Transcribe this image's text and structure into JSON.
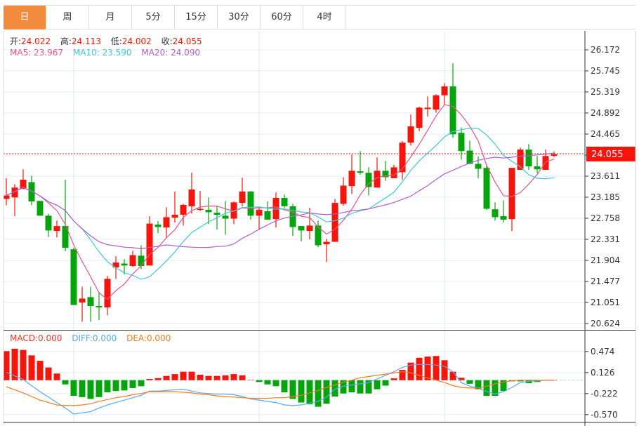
{
  "tabs": [
    {
      "label": "日",
      "active": true
    },
    {
      "label": "周"
    },
    {
      "label": "月"
    },
    {
      "label": "5分"
    },
    {
      "label": "15分"
    },
    {
      "label": "30分"
    },
    {
      "label": "60分"
    },
    {
      "label": "4时"
    }
  ],
  "ohlc_info": {
    "open_label": "开:",
    "open": "24.022",
    "high_label": "高:",
    "high": "24.113",
    "low_label": "低:",
    "low": "24.002",
    "close_label": "收:",
    "close": "24.055"
  },
  "ma_info": {
    "ma5": "MA5: 23.967",
    "ma10": "MA10: 23.590",
    "ma20": "MA20: 24.090"
  },
  "macd_info": {
    "macd": "MACD:0.000",
    "diff": "DIFF:0.000",
    "dea": "DEA:0.000"
  },
  "colors": {
    "up": "#f5150b",
    "down": "#04a50c",
    "ma5": "#eb5486",
    "ma10": "#3fc8dc",
    "ma20": "#b25cc9",
    "diff": "#5aa9ef",
    "dea": "#f47a1f",
    "tab_active": "#f38b3e"
  },
  "chart_data": [
    {
      "type": "candlestick",
      "title": "",
      "price_ticks": [
        "26.172",
        "25.745",
        "25.319",
        "24.892",
        "24.465",
        "24.038",
        "23.611",
        "23.185",
        "22.758",
        "22.331",
        "21.904",
        "21.477",
        "21.051",
        "20.624"
      ],
      "ylim": [
        20.624,
        26.172
      ],
      "last_price": "24.055",
      "candles": [
        [
          23.15,
          23.57,
          23.02,
          23.22
        ],
        [
          23.18,
          23.45,
          22.8,
          23.38
        ],
        [
          23.35,
          23.75,
          23.35,
          23.54
        ],
        [
          23.49,
          23.62,
          23.02,
          23.1
        ],
        [
          23.11,
          23.11,
          22.81,
          22.81
        ],
        [
          22.81,
          22.85,
          22.38,
          22.51
        ],
        [
          22.5,
          22.71,
          22.37,
          22.6
        ],
        [
          22.6,
          23.54,
          22.09,
          22.16
        ],
        [
          22.13,
          22.16,
          21.0,
          21.0
        ],
        [
          21.05,
          21.37,
          20.66,
          21.13
        ],
        [
          21.16,
          21.37,
          20.66,
          20.98
        ],
        [
          20.98,
          21.27,
          20.69,
          20.95
        ],
        [
          20.95,
          21.59,
          20.79,
          21.53
        ],
        [
          21.76,
          21.99,
          21.53,
          21.86
        ],
        [
          21.84,
          21.93,
          21.62,
          21.8
        ],
        [
          21.79,
          22.1,
          21.77,
          22.01
        ],
        [
          22.0,
          22.21,
          21.73,
          21.79
        ],
        [
          21.8,
          22.8,
          21.8,
          22.65
        ],
        [
          22.63,
          22.7,
          22.46,
          22.58
        ],
        [
          22.57,
          22.98,
          22.36,
          22.78
        ],
        [
          22.77,
          23.3,
          22.67,
          22.83
        ],
        [
          22.83,
          23.05,
          22.61,
          23.03
        ],
        [
          23.0,
          23.68,
          22.85,
          23.34
        ],
        [
          22.94,
          23.31,
          22.9,
          22.95
        ],
        [
          22.93,
          23.18,
          22.64,
          22.88
        ],
        [
          22.87,
          23.01,
          22.53,
          22.83
        ],
        [
          22.81,
          23.11,
          22.43,
          22.75
        ],
        [
          22.75,
          23.1,
          22.64,
          23.08
        ],
        [
          23.07,
          23.58,
          23.0,
          23.3
        ],
        [
          23.3,
          23.31,
          22.73,
          22.81
        ],
        [
          22.81,
          22.97,
          22.53,
          22.93
        ],
        [
          22.9,
          23.1,
          22.73,
          22.73
        ],
        [
          22.74,
          23.28,
          22.57,
          23.17
        ],
        [
          23.17,
          23.24,
          22.97,
          23.0
        ],
        [
          23.0,
          23.05,
          22.4,
          22.58
        ],
        [
          22.6,
          22.6,
          22.29,
          22.51
        ],
        [
          22.5,
          22.97,
          22.33,
          22.61
        ],
        [
          22.61,
          22.71,
          22.17,
          22.21
        ],
        [
          22.23,
          22.34,
          21.87,
          22.28
        ],
        [
          22.28,
          23.15,
          22.28,
          23.07
        ],
        [
          23.05,
          23.59,
          23.01,
          23.42
        ],
        [
          23.41,
          24.05,
          23.25,
          23.72
        ],
        [
          23.71,
          24.12,
          23.64,
          23.68
        ],
        [
          23.68,
          23.79,
          23.22,
          23.39
        ],
        [
          23.38,
          23.99,
          23.38,
          23.72
        ],
        [
          23.72,
          23.92,
          23.52,
          23.59
        ],
        [
          23.57,
          23.84,
          23.57,
          23.79
        ],
        [
          23.69,
          24.32,
          23.54,
          24.29
        ],
        [
          24.29,
          24.86,
          24.23,
          24.62
        ],
        [
          24.59,
          25.02,
          24.52,
          25.0
        ],
        [
          24.97,
          25.23,
          24.82,
          25.0
        ],
        [
          24.96,
          25.27,
          24.9,
          25.25
        ],
        [
          25.25,
          25.5,
          25.06,
          25.43
        ],
        [
          25.43,
          25.9,
          24.39,
          24.46
        ],
        [
          24.49,
          24.6,
          23.95,
          24.12
        ],
        [
          24.13,
          24.33,
          23.85,
          23.86
        ],
        [
          23.86,
          24.01,
          23.57,
          23.76
        ],
        [
          23.78,
          23.85,
          22.93,
          22.95
        ],
        [
          22.94,
          23.08,
          22.71,
          22.78
        ],
        [
          22.8,
          23.12,
          22.67,
          22.73
        ],
        [
          22.74,
          23.78,
          22.5,
          23.78
        ],
        [
          23.74,
          24.19,
          23.74,
          24.15
        ],
        [
          24.15,
          24.26,
          23.74,
          23.81
        ],
        [
          23.81,
          24.02,
          23.67,
          23.75
        ],
        [
          23.74,
          24.15,
          23.74,
          24.02
        ],
        [
          24.022,
          24.113,
          24.002,
          24.055
        ]
      ],
      "candle_fields": [
        "open",
        "high",
        "low",
        "close"
      ],
      "ma_periods": [
        5,
        10,
        20
      ]
    },
    {
      "type": "bar+line",
      "title": "MACD",
      "ticks": [
        "0.474",
        "0.126",
        "-0.222",
        "-0.570"
      ],
      "ylim": [
        -0.6,
        0.55
      ],
      "macd": [
        0.48,
        0.52,
        0.5,
        0.41,
        0.32,
        0.21,
        0.11,
        -0.07,
        -0.26,
        -0.28,
        -0.31,
        -0.28,
        -0.2,
        -0.18,
        -0.17,
        -0.13,
        -0.1,
        0.02,
        0.035,
        0.07,
        0.1,
        0.14,
        0.14,
        0.09,
        0.07,
        0.07,
        0.08,
        0.1,
        0.08,
        0.005,
        -0.03,
        -0.07,
        -0.1,
        -0.2,
        -0.31,
        -0.37,
        -0.4,
        -0.44,
        -0.39,
        -0.27,
        -0.22,
        -0.2,
        -0.22,
        -0.22,
        -0.15,
        -0.09,
        0.03,
        0.17,
        0.29,
        0.37,
        0.39,
        0.4,
        0.33,
        0.14,
        0.04,
        -0.06,
        -0.15,
        -0.26,
        -0.26,
        -0.18,
        -0.02,
        -0.02,
        -0.05,
        -0.03,
        0.005,
        0.0
      ],
      "diff": [
        0.13,
        0.07,
        0.01,
        -0.09,
        -0.19,
        -0.28,
        -0.37,
        -0.46,
        -0.56,
        -0.54,
        -0.52,
        -0.46,
        -0.41,
        -0.37,
        -0.33,
        -0.29,
        -0.25,
        -0.18,
        -0.18,
        -0.17,
        -0.16,
        -0.15,
        -0.18,
        -0.21,
        -0.22,
        -0.23,
        -0.23,
        -0.24,
        -0.27,
        -0.31,
        -0.33,
        -0.35,
        -0.37,
        -0.41,
        -0.42,
        -0.41,
        -0.38,
        -0.35,
        -0.28,
        -0.15,
        -0.1,
        -0.08,
        -0.06,
        -0.04,
        0.02,
        0.08,
        0.14,
        0.21,
        0.25,
        0.26,
        0.26,
        0.25,
        0.23,
        0.14,
        -0.04,
        -0.1,
        -0.13,
        -0.19,
        -0.23,
        -0.19,
        -0.12,
        -0.04,
        -0.02,
        -0.01,
        0.0,
        0.0
      ],
      "dea": [
        -0.11,
        -0.16,
        -0.21,
        -0.27,
        -0.33,
        -0.37,
        -0.41,
        -0.42,
        -0.42,
        -0.41,
        -0.39,
        -0.35,
        -0.32,
        -0.29,
        -0.27,
        -0.24,
        -0.22,
        -0.19,
        -0.19,
        -0.19,
        -0.19,
        -0.2,
        -0.21,
        -0.23,
        -0.24,
        -0.26,
        -0.27,
        -0.28,
        -0.29,
        -0.3,
        -0.3,
        -0.3,
        -0.29,
        -0.29,
        -0.27,
        -0.25,
        -0.21,
        -0.17,
        -0.12,
        -0.08,
        -0.03,
        0.0,
        0.04,
        0.06,
        0.08,
        0.1,
        0.12,
        0.14,
        0.12,
        0.08,
        0.04,
        0.0,
        -0.04,
        -0.09,
        -0.12,
        -0.13,
        -0.13,
        -0.1,
        -0.06,
        -0.03,
        -0.01,
        0.0,
        0.0,
        0.0,
        0.0,
        0.0
      ]
    }
  ]
}
